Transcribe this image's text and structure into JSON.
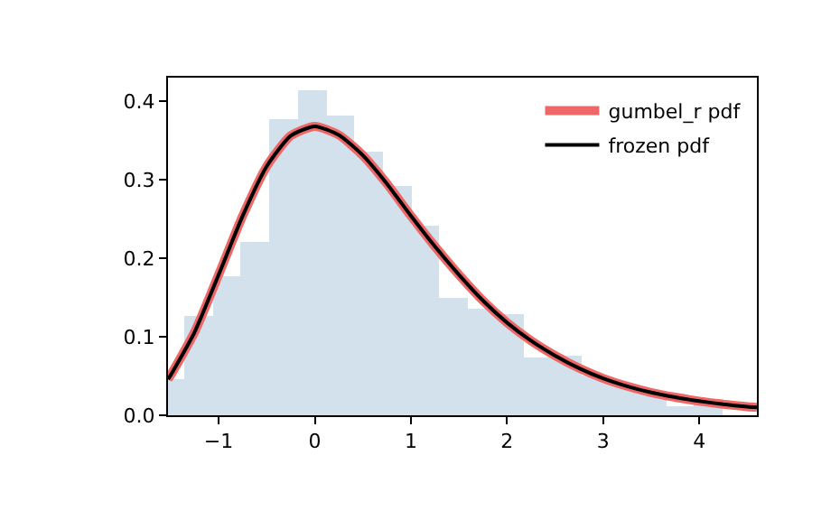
{
  "chart_data": {
    "type": "histogram",
    "color": "#d3e1ed",
    "bins": [
      -1.527,
      -1.356,
      -1.061,
      -0.766,
      -0.472,
      -0.177,
      0.118,
      0.412,
      0.707,
      1.002,
      1.296,
      1.591,
      1.886,
      2.18,
      2.475,
      2.77,
      3.064,
      3.359,
      3.654,
      3.948,
      4.243
    ],
    "values": [
      0.045,
      0.127,
      0.178,
      0.22,
      0.376,
      0.413,
      0.382,
      0.336,
      0.293,
      0.242,
      0.15,
      0.135,
      0.128,
      0.073,
      0.077,
      0.05,
      0.04,
      0.03,
      0.012,
      0.02
    ],
    "series": [
      {
        "type": "line",
        "name": "gumbel_r pdf",
        "color": "#ef6868",
        "x": [
          -1.527,
          -1.5,
          -1.25,
          -1.0,
          -0.75,
          -0.5,
          -0.25,
          0,
          0.25,
          0.5,
          0.75,
          1.0,
          1.25,
          1.5,
          1.75,
          2.0,
          2.25,
          2.5,
          2.75,
          3.0,
          3.25,
          3.5,
          3.75,
          4.0,
          4.25,
          4.5,
          4.6
        ],
        "values": [
          0.046,
          0.051,
          0.106,
          0.179,
          0.254,
          0.317,
          0.356,
          0.368,
          0.357,
          0.331,
          0.295,
          0.254,
          0.215,
          0.179,
          0.146,
          0.118,
          0.095,
          0.076,
          0.06,
          0.047,
          0.037,
          0.029,
          0.023,
          0.018,
          0.014,
          0.011,
          0.01
        ]
      },
      {
        "type": "line",
        "name": "frozen pdf",
        "color": "#000000",
        "x": [
          -1.527,
          -1.5,
          -1.25,
          -1.0,
          -0.75,
          -0.5,
          -0.25,
          0,
          0.25,
          0.5,
          0.75,
          1.0,
          1.25,
          1.5,
          1.75,
          2.0,
          2.25,
          2.5,
          2.75,
          3.0,
          3.25,
          3.5,
          3.75,
          4.0,
          4.25,
          4.5,
          4.6
        ],
        "values": [
          0.046,
          0.051,
          0.106,
          0.179,
          0.254,
          0.317,
          0.356,
          0.368,
          0.357,
          0.331,
          0.295,
          0.254,
          0.215,
          0.179,
          0.146,
          0.118,
          0.095,
          0.076,
          0.06,
          0.047,
          0.037,
          0.029,
          0.023,
          0.018,
          0.014,
          0.011,
          0.01
        ]
      }
    ],
    "xlim": [
      -1.527,
      4.6
    ],
    "xticks": [
      {
        "value": -1,
        "label": "−1"
      },
      0,
      1,
      2,
      3,
      4
    ],
    "ylim": [
      0,
      0.43
    ],
    "yticks": [
      {
        "value": 0,
        "label": "0.0"
      },
      0.1,
      0.2,
      0.3,
      0.4
    ],
    "legend": "top right"
  }
}
